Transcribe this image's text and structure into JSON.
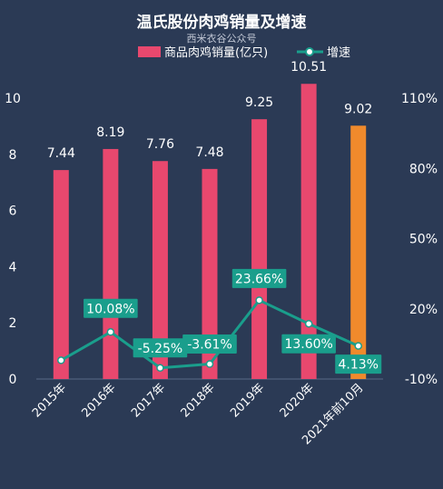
{
  "chart_data": {
    "type": "bar",
    "title": "温氏股份肉鸡销量及增速",
    "subtitle": "西米衣谷公众号",
    "categories": [
      "2015年",
      "2016年",
      "2017年",
      "2018年",
      "2019年",
      "2020年",
      "2021年前10月"
    ],
    "series": [
      {
        "name": "商品肉鸡销量(亿只)",
        "type": "bar",
        "values": [
          7.44,
          8.19,
          7.76,
          7.48,
          9.25,
          10.51,
          9.02
        ],
        "labels": [
          "7.44",
          "8.19",
          "7.76",
          "7.48",
          "9.25",
          "10.51",
          "9.02"
        ],
        "color": "#e8486e",
        "highlight_color": "#f08a2c",
        "highlight_index": 6
      },
      {
        "name": "增速",
        "type": "line",
        "values": [
          -2.0,
          10.08,
          -5.25,
          -3.61,
          23.66,
          13.6,
          4.13
        ],
        "labels": [
          "",
          "10.08%",
          "-5.25%",
          "-3.61%",
          "23.66%",
          "13.60%",
          "4.13%"
        ],
        "color": "#1a9e8c"
      }
    ],
    "y_left": {
      "min": 0,
      "max": 10,
      "ticks": [
        "0",
        "2",
        "4",
        "6",
        "8",
        "10"
      ]
    },
    "y_right": {
      "min": -10,
      "max": 110,
      "ticks": [
        "-10%",
        "20%",
        "50%",
        "80%",
        "110%"
      ]
    },
    "legend_placement": "top-center",
    "grid": false
  }
}
